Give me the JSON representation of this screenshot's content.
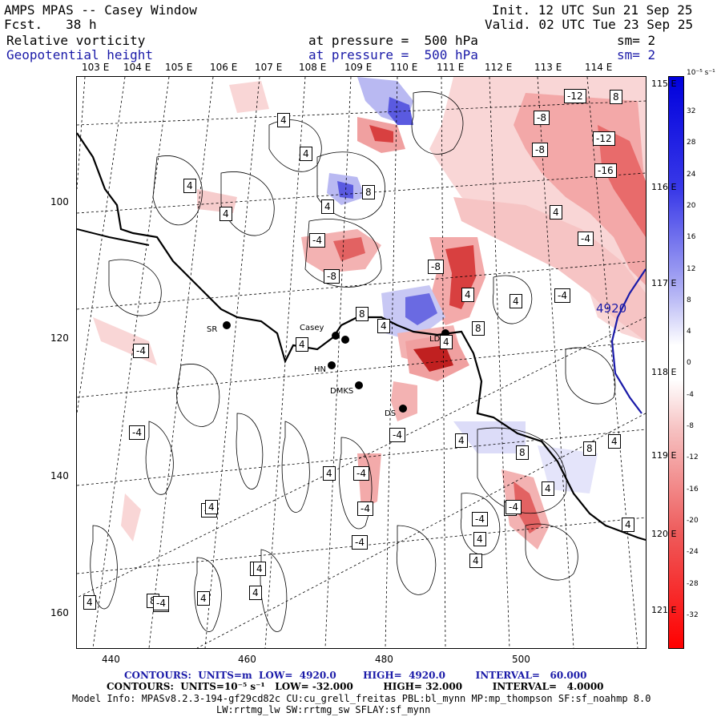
{
  "header": {
    "title": "AMPS MPAS -- Casey Window",
    "forecast": "Fcst.   38 h",
    "init": "Init. 12 UTC Sun 21 Sep 25",
    "valid": "Valid. 02 UTC Tue 23 Sep 25",
    "field1_name": "Relative vorticity",
    "field1_level": "at pressure =  500 hPa",
    "field1_sm": "sm= 2",
    "field2_name": "Geopotential height",
    "field2_level": "at pressure =  500 hPa",
    "field2_sm": "sm= 2"
  },
  "lon_top_labels": [
    "103 E",
    "104 E",
    "105 E",
    "106 E",
    "107 E",
    "108 E",
    "109 E",
    "110 E",
    "111 E",
    "112 E",
    "113 E",
    "114 E"
  ],
  "lat_right_labels": [
    "115 E",
    "116 E",
    "117 E",
    "118 E",
    "119 E",
    "120 E",
    "121 E"
  ],
  "y_axis_ticks": [
    "100",
    "120",
    "140",
    "160"
  ],
  "x_axis_ticks": [
    "440",
    "460",
    "480",
    "500"
  ],
  "colorbar": {
    "unit": "10⁻⁵ s⁻¹",
    "labels": [
      "32",
      "28",
      "24",
      "20",
      "16",
      "12",
      "8",
      "4",
      "0",
      "-4",
      "-8",
      "-12",
      "-16",
      "-20",
      "-24",
      "-28",
      "-32"
    ]
  },
  "stations": [
    {
      "name": "SR"
    },
    {
      "name": "Casey"
    },
    {
      "name": "HN"
    },
    {
      "name": "DMKS"
    },
    {
      "name": "DS"
    },
    {
      "name": "LD"
    }
  ],
  "height_contour_label": "4920",
  "contour_labels": [
    "-12",
    "8",
    "-8",
    "-12",
    "-16",
    "-8",
    "4",
    "4",
    "4",
    "4",
    "8",
    "4",
    "4",
    "-4",
    "-4",
    "-8",
    "-8",
    "-4",
    "4",
    "4",
    "8",
    "8",
    "4",
    "4",
    "-4",
    "4",
    "-4",
    "-4",
    "4",
    "8",
    "8",
    "4",
    "4",
    "-4",
    "-4",
    "4",
    "-4",
    "-4",
    "4",
    "8",
    "-8",
    "8",
    "4",
    "-4",
    "-4",
    "4",
    "4",
    "4",
    "4",
    "-4",
    "4",
    "4",
    "4"
  ],
  "footer": {
    "line1": "CONTOURS:  UNITS=m  LOW=  4920.0        HIGH=  4920.0         INTERVAL=   60.000",
    "line2": "CONTOURS:  UNITS=10⁻⁵ s⁻¹   LOW= -32.000         HIGH= 32.000         INTERVAL=   4.0000",
    "line3": "Model Info: MPASv8.2.3-194-gf29cd82c CU:cu_grell_freitas PBL:bl_mynn MP:mp_thompson SF:sf_noahmp 8.0",
    "line4": "LW:rrtmg_lw SW:rrtmg_sw SFLAY:sf_mynn"
  }
}
